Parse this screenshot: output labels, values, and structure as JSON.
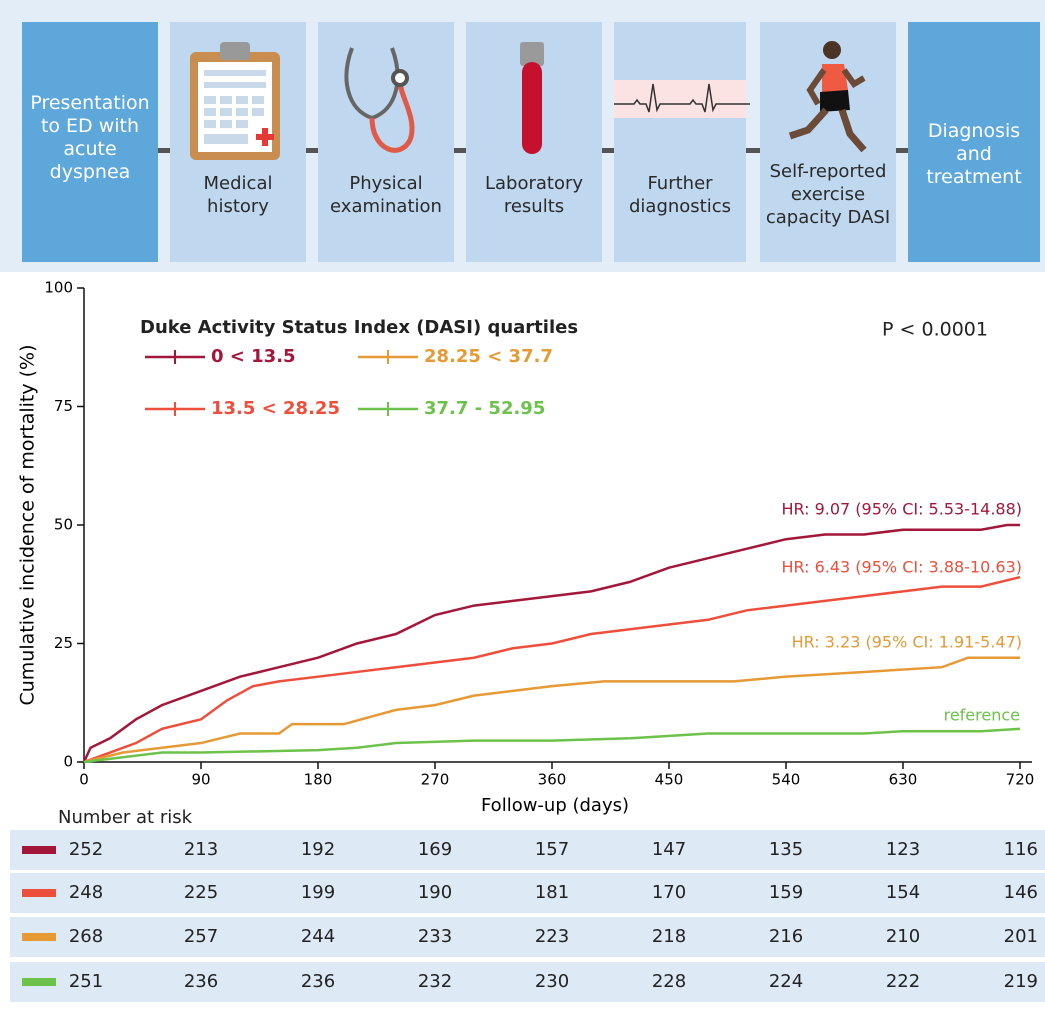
{
  "flow": {
    "steps": [
      {
        "label": "Presentation to ED with acute dyspnea"
      },
      {
        "label": "Medical history"
      },
      {
        "label": "Physical examination"
      },
      {
        "label": "Laboratory results"
      },
      {
        "label": "Further diagnostics"
      },
      {
        "label": "Self-reported exercise capacity DASI"
      },
      {
        "label": "Diagnosis and treatment"
      }
    ]
  },
  "chart_data": {
    "type": "line",
    "xlabel": "Follow-up (days)",
    "ylabel": "Cumulative incidence of mortality (%)",
    "legend_title": "Duke Activity Status Index (DASI) quartiles",
    "xlim": [
      0,
      720
    ],
    "xticks": [
      0,
      90,
      180,
      270,
      360,
      450,
      540,
      630,
      720
    ],
    "ylim": [
      0,
      100
    ],
    "yticks": [
      0,
      25,
      50,
      75,
      100
    ],
    "series": [
      {
        "name": "0 < 13.5",
        "color": "#a3173a",
        "x": [
          0,
          5,
          20,
          40,
          60,
          90,
          120,
          150,
          180,
          210,
          240,
          270,
          300,
          330,
          360,
          390,
          420,
          450,
          480,
          510,
          540,
          570,
          600,
          630,
          660,
          690,
          710,
          720
        ],
        "values": [
          0,
          3,
          5,
          9,
          12,
          15,
          18,
          20,
          22,
          25,
          27,
          31,
          33,
          34,
          35,
          36,
          38,
          41,
          43,
          45,
          47,
          48,
          48,
          49,
          49,
          49,
          50,
          50
        ]
      },
      {
        "name": "13.5 < 28.25",
        "color": "#ee4f3c",
        "x": [
          0,
          20,
          40,
          60,
          90,
          110,
          130,
          150,
          180,
          210,
          240,
          270,
          300,
          330,
          360,
          390,
          420,
          450,
          480,
          510,
          540,
          570,
          600,
          630,
          660,
          690,
          720
        ],
        "values": [
          0,
          2,
          4,
          7,
          9,
          13,
          16,
          17,
          18,
          19,
          20,
          21,
          22,
          24,
          25,
          27,
          28,
          29,
          30,
          32,
          33,
          34,
          35,
          36,
          37,
          37,
          39
        ]
      },
      {
        "name": "28.25 < 37.7",
        "color": "#e69a35",
        "x": [
          0,
          30,
          60,
          90,
          120,
          150,
          160,
          200,
          240,
          270,
          300,
          330,
          360,
          400,
          450,
          500,
          540,
          600,
          660,
          680,
          720
        ],
        "values": [
          0,
          2,
          3,
          4,
          6,
          6,
          8,
          8,
          11,
          12,
          14,
          15,
          16,
          17,
          17,
          17,
          18,
          19,
          20,
          22,
          22
        ]
      },
      {
        "name": "37.7 - 52.95",
        "color": "#6cc24a",
        "x": [
          0,
          30,
          60,
          90,
          180,
          210,
          240,
          300,
          360,
          420,
          480,
          540,
          600,
          630,
          690,
          720
        ],
        "values": [
          0,
          1,
          2,
          2,
          2.5,
          3,
          4,
          4.5,
          4.5,
          5,
          6,
          6,
          6,
          6.5,
          6.5,
          7
        ]
      }
    ],
    "annotations": [
      {
        "text": "P < 0.0001",
        "color": "#222222"
      },
      {
        "text": "HR: 9.07 (95% CI: 5.53-14.88)",
        "color": "#a3173a"
      },
      {
        "text": "HR: 6.43 (95% CI: 3.88-10.63)",
        "color": "#ee4f3c"
      },
      {
        "text": "HR: 3.23 (95% CI: 1.91-5.47)",
        "color": "#e69a35"
      },
      {
        "text": "reference",
        "color": "#6cc24a"
      }
    ],
    "number_at_risk": {
      "title": "Number at risk",
      "rows": [
        [
          252,
          213,
          192,
          169,
          157,
          147,
          135,
          123,
          116
        ],
        [
          248,
          225,
          199,
          190,
          181,
          170,
          159,
          154,
          146
        ],
        [
          268,
          257,
          244,
          233,
          223,
          218,
          216,
          210,
          201
        ],
        [
          251,
          236,
          236,
          232,
          230,
          228,
          224,
          222,
          219
        ]
      ]
    }
  }
}
